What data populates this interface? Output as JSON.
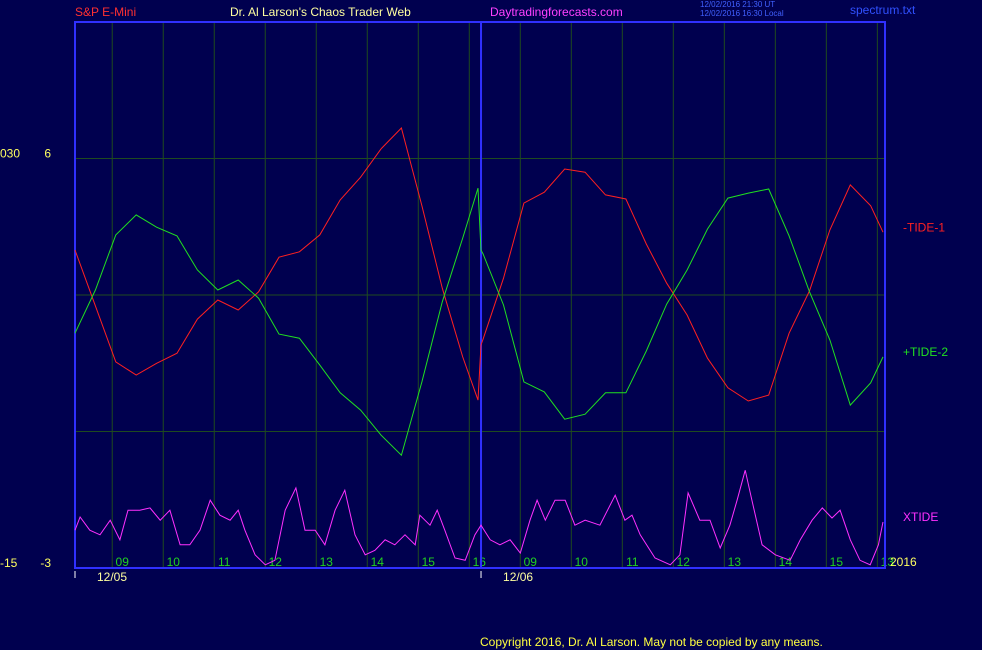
{
  "header": {
    "symbol": "S&P E-Mini",
    "title": "Dr. Al Larson's Chaos Trader Web",
    "site": "Daytradingforecasts.com",
    "time_ut": "12/02/2016 21:30 UT",
    "time_local": "12/02/2016 16:30 Local",
    "file": "spectrum.txt"
  },
  "footer": {
    "copyright": "Copyright 2016, Dr. Al Larson. May not be copied by any means."
  },
  "chart_data": {
    "type": "line",
    "xlim": [
      0,
      15.88
    ],
    "ylim": [
      -3,
      9
    ],
    "yticks": [
      -3,
      6
    ],
    "grid_yticks": [
      0,
      3,
      6
    ],
    "y2lim": [
      -15,
      45
    ],
    "y2ticks": [
      -15,
      {
        "value": 30,
        "label": "030"
      }
    ],
    "xticks": [
      {
        "value": 0.73,
        "label": "09"
      },
      {
        "value": 1.73,
        "label": "10"
      },
      {
        "value": 2.73,
        "label": "11"
      },
      {
        "value": 3.73,
        "label": "12"
      },
      {
        "value": 4.73,
        "label": "13"
      },
      {
        "value": 5.73,
        "label": "14"
      },
      {
        "value": 6.73,
        "label": "15"
      },
      {
        "value": 7.73,
        "label": "16"
      },
      {
        "value": 8.73,
        "label": "09"
      },
      {
        "value": 9.73,
        "label": "10"
      },
      {
        "value": 10.73,
        "label": "11"
      },
      {
        "value": 11.73,
        "label": "12"
      },
      {
        "value": 12.73,
        "label": "13"
      },
      {
        "value": 13.73,
        "label": "14"
      },
      {
        "value": 14.73,
        "label": "15"
      },
      {
        "value": 15.73,
        "label": "13"
      }
    ],
    "days": [
      {
        "x": 0,
        "label": "12/05"
      },
      {
        "x": 7.96,
        "label": "12/06"
      }
    ],
    "year": "2016",
    "grid": true,
    "x": [
      0,
      0.4,
      0.8,
      1.2,
      1.6,
      2.0,
      2.4,
      2.8,
      3.2,
      3.6,
      4.0,
      4.4,
      4.8,
      5.2,
      5.6,
      6.0,
      6.4,
      6.8,
      7.2,
      7.6,
      7.9,
      7.96,
      8.0,
      8.4,
      8.8,
      9.2,
      9.6,
      10.0,
      10.4,
      10.8,
      11.2,
      11.6,
      12.0,
      12.4,
      12.8,
      13.2,
      13.6,
      14.0,
      14.4,
      14.8,
      15.2,
      15.6,
      15.84
    ],
    "series": [
      {
        "name": "-TIDE-1",
        "color": "#ff2020",
        "values": [
          3.99,
          2.76,
          1.53,
          1.24,
          1.5,
          1.72,
          2.47,
          2.89,
          2.67,
          3.07,
          3.83,
          3.95,
          4.32,
          5.09,
          5.59,
          6.21,
          6.67,
          4.96,
          3.15,
          1.64,
          0.69,
          1.9,
          2.03,
          3.37,
          5.02,
          5.26,
          5.77,
          5.7,
          5.2,
          5.11,
          4.12,
          3.26,
          2.56,
          1.61,
          0.96,
          0.67,
          0.8,
          2.16,
          3.09,
          4.43,
          5.42,
          4.96,
          4.38
        ]
      },
      {
        "name": "+TIDE-2",
        "color": "#20e020",
        "values": [
          2.16,
          3.11,
          4.32,
          4.76,
          4.49,
          4.3,
          3.55,
          3.11,
          3.33,
          2.93,
          2.14,
          2.05,
          1.46,
          0.85,
          0.47,
          -0.08,
          -0.52,
          1.09,
          2.85,
          4.25,
          5.35,
          3.99,
          3.9,
          2.78,
          1.09,
          0.87,
          0.27,
          0.38,
          0.85,
          0.85,
          1.77,
          2.8,
          3.55,
          4.45,
          5.13,
          5.24,
          5.33,
          4.3,
          3.07,
          2.01,
          0.58,
          1.07,
          1.64
        ]
      },
      {
        "name": "XTIDE",
        "color": "#ff30ff",
        "x": [
          0,
          0.1,
          0.29,
          0.49,
          0.69,
          0.88,
          1.04,
          1.27,
          1.47,
          1.67,
          1.86,
          2.06,
          2.25,
          2.45,
          2.65,
          2.84,
          3.04,
          3.2,
          3.33,
          3.53,
          3.73,
          3.92,
          4.12,
          4.33,
          4.51,
          4.71,
          4.9,
          5.1,
          5.29,
          5.49,
          5.69,
          5.88,
          6.08,
          6.27,
          6.47,
          6.67,
          6.76,
          6.96,
          7.1,
          7.25,
          7.45,
          7.65,
          7.84,
          7.96,
          8.14,
          8.33,
          8.53,
          8.73,
          8.92,
          9.06,
          9.22,
          9.41,
          9.61,
          9.8,
          10.0,
          10.29,
          10.59,
          10.78,
          10.92,
          11.08,
          11.37,
          11.67,
          11.86,
          12.02,
          12.25,
          12.45,
          12.65,
          12.84,
          12.98,
          13.14,
          13.27,
          13.47,
          13.73,
          14.02,
          14.22,
          14.45,
          14.65,
          14.84,
          15.0,
          15.2,
          15.39,
          15.59,
          15.75,
          15.84
        ],
        "values": [
          -2.17,
          -1.88,
          -2.17,
          -2.27,
          -1.95,
          -2.38,
          -1.73,
          -1.73,
          -1.68,
          -1.95,
          -1.73,
          -2.49,
          -2.49,
          -2.17,
          -1.51,
          -1.84,
          -1.95,
          -1.73,
          -2.17,
          -2.71,
          -2.93,
          -2.83,
          -1.73,
          -1.24,
          -2.17,
          -2.17,
          -2.49,
          -1.73,
          -1.29,
          -2.27,
          -2.71,
          -2.61,
          -2.38,
          -2.49,
          -2.27,
          -2.49,
          -1.84,
          -2.06,
          -1.73,
          -2.17,
          -2.78,
          -2.83,
          -2.27,
          -2.06,
          -2.38,
          -2.49,
          -2.38,
          -2.67,
          -1.95,
          -1.51,
          -1.95,
          -1.51,
          -1.51,
          -2.06,
          -1.95,
          -2.06,
          -1.4,
          -1.95,
          -1.84,
          -2.27,
          -2.78,
          -2.93,
          -2.71,
          -1.35,
          -1.95,
          -1.95,
          -2.56,
          -2.06,
          -1.51,
          -0.85,
          -1.51,
          -2.49,
          -2.71,
          -2.83,
          -2.38,
          -1.95,
          -1.68,
          -1.9,
          -1.73,
          -2.38,
          -2.83,
          -2.93,
          -2.49,
          -1.99
        ]
      }
    ]
  }
}
